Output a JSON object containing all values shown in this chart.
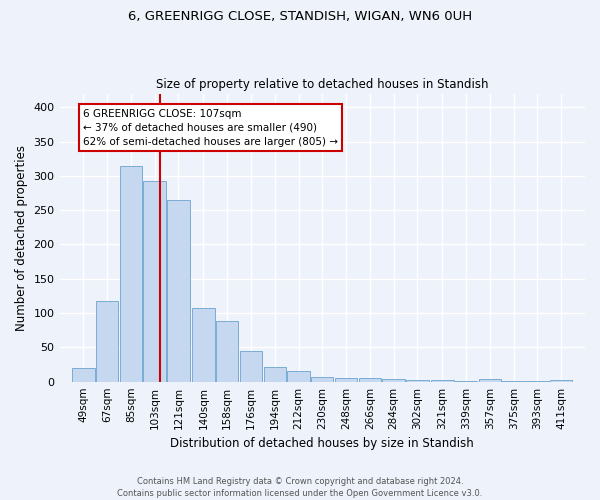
{
  "title": "6, GREENRIGG CLOSE, STANDISH, WIGAN, WN6 0UH",
  "subtitle": "Size of property relative to detached houses in Standish",
  "xlabel": "Distribution of detached houses by size in Standish",
  "ylabel": "Number of detached properties",
  "bin_labels": [
    "49sqm",
    "67sqm",
    "85sqm",
    "103sqm",
    "121sqm",
    "140sqm",
    "158sqm",
    "176sqm",
    "194sqm",
    "212sqm",
    "230sqm",
    "248sqm",
    "266sqm",
    "284sqm",
    "302sqm",
    "321sqm",
    "339sqm",
    "357sqm",
    "375sqm",
    "393sqm",
    "411sqm"
  ],
  "bar_heights": [
    20,
    118,
    315,
    293,
    265,
    108,
    88,
    44,
    22,
    16,
    7,
    6,
    5,
    4,
    3,
    3,
    1,
    4,
    1,
    1,
    3
  ],
  "bar_color": "#c5d8f0",
  "bar_edge_color": "#7aadd4",
  "background_color": "#eef2fb",
  "grid_color": "#ffffff",
  "annotation_line1": "6 GREENRIGG CLOSE: 107sqm",
  "annotation_line2": "← 37% of detached houses are smaller (490)",
  "annotation_line3": "62% of semi-detached houses are larger (805) →",
  "annotation_box_color": "#ffffff",
  "annotation_box_edge": "#cc0000",
  "red_line_x_label": "103sqm",
  "ylim": [
    0,
    420
  ],
  "yticks": [
    0,
    50,
    100,
    150,
    200,
    250,
    300,
    350,
    400
  ],
  "footer": "Contains HM Land Registry data © Crown copyright and database right 2024.\nContains public sector information licensed under the Open Government Licence v3.0.",
  "bin_width": 18
}
